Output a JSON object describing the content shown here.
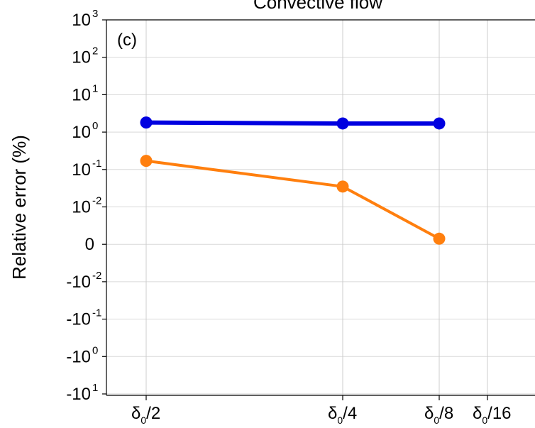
{
  "chart_data": {
    "type": "line",
    "title": "Convective flow",
    "panel_label": "(c)",
    "ylabel": "Relative error (%)",
    "xlabel": "",
    "yscale": "symlog",
    "y_ticks": [
      {
        "base": "10",
        "exp": "3"
      },
      {
        "base": "10",
        "exp": "2"
      },
      {
        "base": "10",
        "exp": "1"
      },
      {
        "base": "10",
        "exp": "0"
      },
      {
        "base": "10",
        "exp": "-1"
      },
      {
        "base": "10",
        "exp": "-2"
      },
      {
        "base": "0",
        "exp": ""
      },
      {
        "base": "-10",
        "exp": "-2"
      },
      {
        "base": "-10",
        "exp": "-1"
      },
      {
        "base": "-10",
        "exp": "0"
      },
      {
        "base": "-10",
        "exp": "1"
      }
    ],
    "x_ticks": [
      {
        "greek": "δ",
        "sub": "0",
        "rest": "/2"
      },
      {
        "greek": "δ",
        "sub": "0",
        "rest": "/4"
      },
      {
        "greek": "δ",
        "sub": "0",
        "rest": "/8"
      },
      {
        "greek": "δ",
        "sub": "0",
        "rest": "/16"
      }
    ],
    "grid": true,
    "series": [
      {
        "color": "#0000e0",
        "values": [
          1.8,
          1.7,
          1.7
        ]
      },
      {
        "color": "#ff7f0e",
        "values": [
          0.17,
          0.035,
          0.0015
        ]
      }
    ]
  }
}
